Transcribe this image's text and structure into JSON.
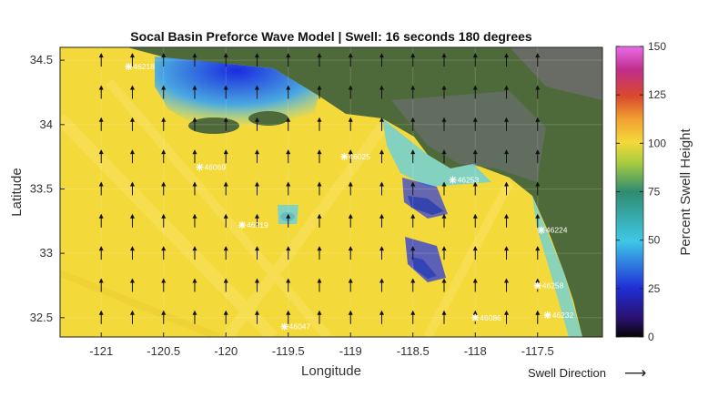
{
  "chart_data": {
    "type": "heatmap",
    "title": "Socal Basin Preforce Wave Model | Swell: 16 seconds 180 degrees",
    "xlabel": "Longitude",
    "ylabel": "Latitude",
    "xlim": [
      -121.33,
      -116.98
    ],
    "ylim": [
      32.35,
      34.6
    ],
    "x_ticks": [
      -121,
      -120.5,
      -120,
      -119.5,
      -119,
      -118.5,
      -118,
      -117.5
    ],
    "y_ticks": [
      32.5,
      33,
      33.5,
      34,
      34.5
    ],
    "colorbar": {
      "label": "Percent Swell Height",
      "range": [
        0,
        150
      ],
      "ticks": [
        0,
        25,
        50,
        75,
        100,
        125,
        150
      ]
    },
    "buoys": [
      {
        "id": "46218",
        "lon": -120.78,
        "lat": 34.45
      },
      {
        "id": "46069",
        "lon": -120.21,
        "lat": 33.67
      },
      {
        "id": "46025",
        "lon": -119.05,
        "lat": 33.75
      },
      {
        "id": "46253",
        "lon": -118.18,
        "lat": 33.57
      },
      {
        "id": "46219",
        "lon": -119.87,
        "lat": 33.22
      },
      {
        "id": "46224",
        "lon": -117.47,
        "lat": 33.18
      },
      {
        "id": "46258",
        "lon": -117.5,
        "lat": 32.75
      },
      {
        "id": "46232",
        "lon": -117.42,
        "lat": 32.52
      },
      {
        "id": "46086",
        "lon": -118.0,
        "lat": 32.5
      },
      {
        "id": "46047",
        "lon": -119.53,
        "lat": 32.43
      }
    ],
    "swell_arrows": {
      "direction_deg": 180,
      "lons": [
        -121,
        -120.75,
        -120.5,
        -120.25,
        -120,
        -119.75,
        -119.5,
        -119.25,
        -119,
        -118.75,
        -118.5,
        -118.25,
        -118,
        -117.75,
        -117.5
      ],
      "lats": [
        32.5,
        32.75,
        33,
        33.25,
        33.5,
        33.75,
        34,
        34.25,
        34.5
      ]
    }
  },
  "legend": {
    "swell_direction_label": "Swell Direction",
    "arrow": "⟶"
  },
  "colors": {
    "ocean_base": "#f4d93b",
    "land": "#4f6a3a"
  }
}
